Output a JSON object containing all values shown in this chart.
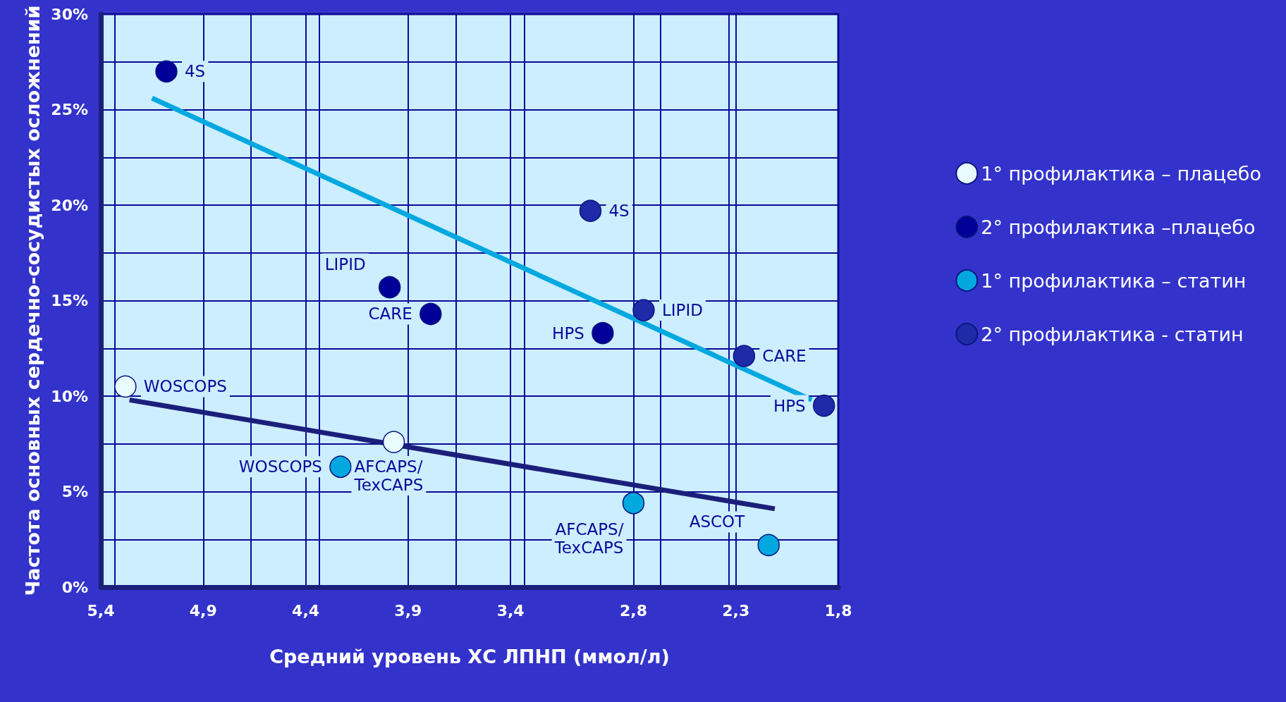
{
  "chart_data": {
    "type": "scatter",
    "xlabel": "Средний уровень ХС ЛПНП (ммол/л)",
    "ylabel": "Частота основных сердечно-сосудистых осложнений",
    "xlim": [
      5.4,
      1.8
    ],
    "xticks": [
      {
        "value": 5.4,
        "label": "5,4"
      },
      {
        "value": 4.9,
        "label": "4,9"
      },
      {
        "value": 4.4,
        "label": "4,4"
      },
      {
        "value": 3.9,
        "label": "3,9"
      },
      {
        "value": 3.4,
        "label": "3,4"
      },
      {
        "value": 2.8,
        "label": "2,8"
      },
      {
        "value": 2.3,
        "label": "2,3"
      },
      {
        "value": 1.8,
        "label": "1,8"
      }
    ],
    "ylim": [
      0,
      30
    ],
    "yticks": [
      {
        "value": 0,
        "label": "0%"
      },
      {
        "value": 5,
        "label": "5%"
      },
      {
        "value": 10,
        "label": "10%"
      },
      {
        "value": 15,
        "label": "15%"
      },
      {
        "value": 20,
        "label": "20%"
      },
      {
        "value": 25,
        "label": "25%"
      },
      {
        "value": 30,
        "label": "30%"
      }
    ],
    "grid": true,
    "legend": "right",
    "marker": "circle",
    "series": [
      {
        "name": "1° профилактика – плацебо",
        "color": "#e8fcff",
        "x": [
          5.28,
          3.97
        ],
        "values": [
          10.5,
          7.6
        ]
      },
      {
        "name": "2° профилактика –плацебо",
        "color": "#000099",
        "x": [
          5.08,
          3.99,
          3.79,
          2.95
        ],
        "values": [
          27.0,
          15.7,
          14.3,
          13.3
        ]
      },
      {
        "name": "1° профилактика – статин",
        "color": "#00a8e0",
        "x": [
          4.23,
          2.8,
          2.14
        ],
        "values": [
          6.3,
          4.4,
          2.2
        ]
      },
      {
        "name": "2° профилактика - статин",
        "color": "#1f2aa8",
        "x": [
          3.01,
          2.75,
          2.26,
          1.87
        ],
        "values": [
          19.7,
          14.5,
          12.1,
          9.5
        ]
      },
      {
        "type": "line",
        "color": "#00a8e0",
        "x": [
          5.15,
          1.93
        ],
        "values": [
          25.6,
          9.8
        ],
        "line_style": "solid",
        "marker": "none"
      },
      {
        "type": "line",
        "color": "#1c1f7a",
        "x": [
          5.26,
          2.11
        ],
        "values": [
          9.8,
          4.1
        ],
        "line_style": "solid",
        "marker": "none"
      }
    ],
    "annotations": [
      {
        "text": "4S",
        "x": 5.08,
        "y": 27.0
      },
      {
        "text": "LIPID",
        "x": 3.99,
        "y": 15.7
      },
      {
        "text": "CARE",
        "x": 3.79,
        "y": 14.3
      },
      {
        "text": "HPS",
        "x": 2.95,
        "y": 13.3
      },
      {
        "text": "4S",
        "x": 3.01,
        "y": 19.7
      },
      {
        "text": "LIPID",
        "x": 2.75,
        "y": 14.5
      },
      {
        "text": "CARE",
        "x": 2.26,
        "y": 12.1
      },
      {
        "text": "HPS",
        "x": 1.87,
        "y": 9.5
      },
      {
        "text": "WOSCOPS",
        "x": 5.28,
        "y": 10.5
      },
      {
        "text": "WOSCOPS",
        "x": 4.23,
        "y": 6.3
      },
      {
        "text": "AFCAPS/\nTexCAPS",
        "x": 3.97,
        "y": 7.6
      },
      {
        "text": "AFCAPS/\nTexCAPS",
        "x": 2.8,
        "y": 4.4
      },
      {
        "text": "ASCOT",
        "x": 2.14,
        "y": 2.2
      }
    ]
  }
}
